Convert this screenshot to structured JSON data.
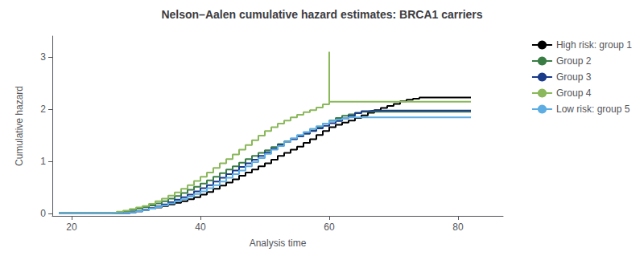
{
  "chart_data": {
    "type": "step",
    "title": "Nelson–Aalen cumulative hazard estimates: BRCA1 carriers",
    "xlabel": "Analysis time",
    "ylabel": "Cumulative hazard",
    "xlim": [
      17,
      87
    ],
    "ylim": [
      -0.05,
      3.4
    ],
    "xticks": [
      20,
      40,
      60,
      80
    ],
    "yticks": [
      0,
      1,
      2,
      3
    ],
    "grid": false,
    "legend": "right",
    "series": [
      {
        "name": "High risk: group 1",
        "color": "#000000",
        "x": [
          18,
          28,
          29,
          30,
          31,
          32,
          33,
          34,
          35,
          36,
          37,
          38,
          39,
          40,
          41,
          42,
          43,
          44,
          45,
          46,
          47,
          48,
          49,
          50,
          51,
          52,
          53,
          54,
          55,
          56,
          57,
          58,
          59,
          60,
          61,
          62,
          63,
          64,
          65,
          66,
          67,
          68,
          69,
          70,
          71,
          72,
          73,
          74,
          75,
          76,
          77,
          78,
          82
        ],
        "values": [
          0,
          0,
          0.02,
          0.04,
          0.06,
          0.09,
          0.11,
          0.14,
          0.17,
          0.2,
          0.23,
          0.27,
          0.31,
          0.36,
          0.41,
          0.47,
          0.53,
          0.59,
          0.65,
          0.72,
          0.78,
          0.84,
          0.9,
          0.96,
          1.03,
          1.1,
          1.16,
          1.22,
          1.28,
          1.35,
          1.42,
          1.5,
          1.58,
          1.65,
          1.7,
          1.74,
          1.78,
          1.83,
          1.88,
          1.93,
          1.98,
          2.02,
          2.06,
          2.1,
          2.15,
          2.18,
          2.2,
          2.22,
          2.22,
          2.22,
          2.22,
          2.22,
          2.22
        ]
      },
      {
        "name": "Group 2",
        "color": "#3a7d44",
        "x": [
          18,
          26,
          27,
          28,
          29,
          30,
          31,
          32,
          33,
          34,
          35,
          36,
          37,
          38,
          39,
          40,
          41,
          42,
          43,
          44,
          45,
          46,
          47,
          48,
          49,
          50,
          51,
          52,
          53,
          54,
          55,
          56,
          57,
          58,
          59,
          60,
          61,
          62,
          63,
          64,
          65,
          66,
          82
        ],
        "values": [
          0,
          0,
          0.02,
          0.04,
          0.06,
          0.09,
          0.12,
          0.15,
          0.19,
          0.23,
          0.28,
          0.33,
          0.39,
          0.45,
          0.51,
          0.57,
          0.63,
          0.7,
          0.77,
          0.84,
          0.9,
          0.97,
          1.04,
          1.1,
          1.16,
          1.21,
          1.27,
          1.33,
          1.38,
          1.43,
          1.48,
          1.53,
          1.59,
          1.65,
          1.72,
          1.78,
          1.83,
          1.87,
          1.9,
          1.93,
          1.95,
          1.95,
          1.95
        ]
      },
      {
        "name": "Group 3",
        "color": "#1a3a8a",
        "x": [
          18,
          28,
          29,
          30,
          31,
          32,
          33,
          34,
          35,
          36,
          37,
          38,
          39,
          40,
          41,
          42,
          43,
          44,
          45,
          46,
          47,
          48,
          49,
          50,
          51,
          52,
          53,
          54,
          55,
          56,
          57,
          58,
          59,
          60,
          61,
          62,
          63,
          64,
          65,
          66,
          67,
          68,
          69,
          70,
          71,
          72,
          73,
          74,
          75,
          76,
          78,
          82
        ],
        "values": [
          0,
          0,
          0.02,
          0.04,
          0.07,
          0.1,
          0.13,
          0.17,
          0.21,
          0.26,
          0.31,
          0.36,
          0.42,
          0.48,
          0.54,
          0.61,
          0.68,
          0.75,
          0.82,
          0.89,
          0.96,
          1.03,
          1.1,
          1.17,
          1.24,
          1.31,
          1.37,
          1.42,
          1.48,
          1.53,
          1.58,
          1.63,
          1.68,
          1.73,
          1.77,
          1.82,
          1.87,
          1.92,
          1.96,
          1.97,
          1.97,
          1.97,
          1.97,
          1.97,
          1.97,
          1.97,
          1.97,
          1.97,
          1.97,
          1.97,
          1.97,
          1.97
        ]
      },
      {
        "name": "Group 4",
        "color": "#8ab85a",
        "x": [
          18,
          25,
          26,
          27,
          28,
          29,
          30,
          31,
          32,
          33,
          34,
          35,
          36,
          37,
          38,
          39,
          40,
          41,
          42,
          43,
          44,
          45,
          46,
          47,
          48,
          49,
          50,
          51,
          52,
          53,
          54,
          55,
          56,
          57,
          58,
          59,
          60,
          61,
          82
        ],
        "values": [
          0,
          0,
          0.01,
          0.03,
          0.05,
          0.08,
          0.11,
          0.14,
          0.18,
          0.23,
          0.28,
          0.34,
          0.4,
          0.47,
          0.54,
          0.62,
          0.7,
          0.78,
          0.87,
          0.96,
          1.04,
          1.13,
          1.22,
          1.31,
          1.4,
          1.49,
          1.58,
          1.65,
          1.72,
          1.78,
          1.84,
          1.89,
          1.94,
          1.98,
          2.03,
          2.09,
          2.14,
          2.14,
          2.14
        ],
        "spike": {
          "x": [
            60,
            60
          ],
          "values": [
            2.14,
            3.1
          ]
        }
      },
      {
        "name": "Low risk: group 5",
        "color": "#5dade2",
        "x": [
          18,
          28,
          29,
          30,
          31,
          32,
          33,
          34,
          35,
          36,
          37,
          38,
          39,
          40,
          41,
          42,
          43,
          44,
          45,
          46,
          47,
          48,
          49,
          50,
          51,
          52,
          53,
          54,
          55,
          56,
          57,
          58,
          59,
          60,
          61,
          62,
          63,
          64,
          65,
          66,
          67,
          68,
          69,
          70,
          71,
          72,
          73,
          74,
          75,
          76,
          77,
          78,
          82
        ],
        "values": [
          0,
          0,
          0.02,
          0.04,
          0.06,
          0.09,
          0.12,
          0.15,
          0.19,
          0.23,
          0.27,
          0.32,
          0.37,
          0.42,
          0.48,
          0.54,
          0.61,
          0.68,
          0.75,
          0.82,
          0.9,
          0.98,
          1.06,
          1.14,
          1.22,
          1.29,
          1.37,
          1.44,
          1.5,
          1.56,
          1.62,
          1.67,
          1.72,
          1.77,
          1.8,
          1.82,
          1.84,
          1.84,
          1.84,
          1.84,
          1.84,
          1.84,
          1.84,
          1.84,
          1.84,
          1.84,
          1.84,
          1.84,
          1.84,
          1.84,
          1.84,
          1.84,
          1.84
        ]
      }
    ]
  }
}
